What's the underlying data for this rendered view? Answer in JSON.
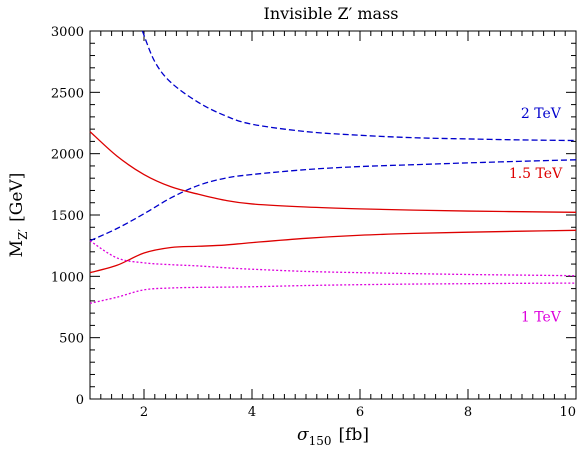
{
  "chart_data": {
    "type": "line",
    "title": "Invisible Z′ mass",
    "xlabel": {
      "main": "σ",
      "sub": "150",
      "unit": "[fb]"
    },
    "ylabel": {
      "main": "M",
      "sub": "Z′",
      "unit": "[GeV]"
    },
    "xlim": [
      1,
      10
    ],
    "ylim": [
      0,
      3000
    ],
    "x_ticks": [
      2,
      4,
      6,
      8,
      10
    ],
    "y_ticks": [
      0,
      500,
      1000,
      1500,
      2000,
      2500,
      3000
    ],
    "x_tick_labels": [
      "2",
      "4",
      "6",
      "8",
      "10"
    ],
    "y_tick_labels": [
      "0",
      "500",
      "1000",
      "1500",
      "2000",
      "2500",
      "3000"
    ],
    "colors": {
      "2TeV": "#0000cc",
      "1.5TeV": "#dd0000",
      "1TeV": "#dd00dd"
    },
    "series": [
      {
        "name": "2 TeV",
        "group": "2TeV",
        "style": "dashed",
        "x": [
          1.97,
          2.2,
          2.5,
          3,
          3.5,
          4,
          5,
          6,
          7,
          8,
          9,
          10
        ],
        "y": [
          3000,
          2750,
          2580,
          2420,
          2310,
          2240,
          2180,
          2150,
          2130,
          2120,
          2112,
          2107
        ]
      },
      {
        "name": "",
        "group": "2TeV",
        "style": "dashed",
        "x": [
          1,
          1.5,
          2,
          2.5,
          3,
          3.5,
          4,
          5,
          6,
          7,
          8,
          9,
          10
        ],
        "y": [
          1290,
          1390,
          1510,
          1640,
          1740,
          1800,
          1830,
          1870,
          1895,
          1910,
          1925,
          1938,
          1950
        ]
      },
      {
        "name": "1.5 TeV",
        "group": "1.5TeV",
        "style": "solid",
        "x": [
          1,
          1.5,
          2,
          2.5,
          3,
          3.5,
          4,
          5,
          6,
          7,
          8,
          9,
          10
        ],
        "y": [
          2180,
          1980,
          1830,
          1730,
          1670,
          1620,
          1590,
          1565,
          1550,
          1540,
          1532,
          1527,
          1522
        ]
      },
      {
        "name": "",
        "group": "1.5TeV",
        "style": "solid",
        "x": [
          1,
          1.5,
          2,
          2.5,
          3,
          3.5,
          4,
          5,
          6,
          7,
          8,
          9,
          10
        ],
        "y": [
          1030,
          1090,
          1190,
          1235,
          1245,
          1255,
          1275,
          1310,
          1335,
          1350,
          1360,
          1368,
          1375
        ]
      },
      {
        "name": "1 TeV",
        "group": "1TeV",
        "style": "dotted",
        "x": [
          1,
          1.5,
          2,
          2.5,
          3,
          3.5,
          4,
          5,
          6,
          7,
          8,
          9,
          10
        ],
        "y": [
          1290,
          1150,
          1110,
          1095,
          1085,
          1070,
          1058,
          1040,
          1030,
          1022,
          1015,
          1010,
          1005
        ]
      },
      {
        "name": "",
        "group": "1TeV",
        "style": "dotted",
        "x": [
          1,
          1.5,
          2,
          2.5,
          3,
          3.5,
          4,
          5,
          6,
          7,
          8,
          9,
          10
        ],
        "y": [
          780,
          830,
          890,
          905,
          910,
          912,
          915,
          925,
          932,
          937,
          940,
          943,
          945
        ]
      }
    ],
    "annotations": [
      {
        "text": "2 TeV",
        "group": "2TeV",
        "x": 9.35,
        "y": 2290
      },
      {
        "text": "1.5 TeV",
        "group": "1.5TeV",
        "x": 9.25,
        "y": 1800
      },
      {
        "text": "1 TeV",
        "group": "1TeV",
        "x": 9.35,
        "y": 630
      }
    ]
  }
}
